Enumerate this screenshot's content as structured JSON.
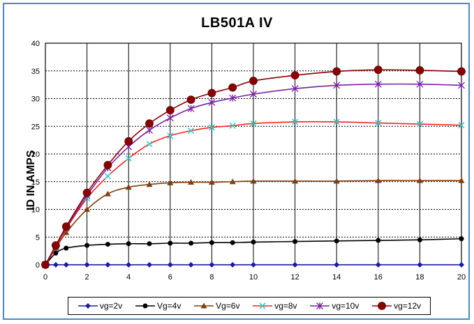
{
  "chart_data": {
    "type": "line",
    "title": "LB501A  IV",
    "xlabel": "",
    "ylabel": "ID IN AMPS",
    "xlim": [
      0,
      20
    ],
    "ylim": [
      0,
      40
    ],
    "xticks": [
      0,
      2,
      4,
      6,
      8,
      10,
      12,
      14,
      16,
      18,
      20
    ],
    "yticks": [
      0,
      5,
      10,
      15,
      20,
      25,
      30,
      35,
      40
    ],
    "grid": true,
    "legend_position": "bottom",
    "series": [
      {
        "name": "vg=2v",
        "color": "#1a1aa6",
        "marker": "diamond",
        "x": [
          0,
          0.5,
          1,
          2,
          3,
          4,
          5,
          6,
          7,
          8,
          9,
          10,
          12,
          14,
          16,
          18,
          20
        ],
        "y": [
          0,
          0,
          0,
          0,
          0,
          0,
          0,
          0,
          0,
          0,
          0,
          0,
          0,
          0,
          0,
          0,
          0
        ]
      },
      {
        "name": "Vg=4v",
        "color": "#000000",
        "marker": "circle",
        "x": [
          0,
          0.5,
          1,
          2,
          3,
          4,
          5,
          6,
          7,
          8,
          9,
          10,
          12,
          14,
          16,
          18,
          20
        ],
        "y": [
          0,
          2.1,
          3.0,
          3.5,
          3.7,
          3.8,
          3.8,
          3.9,
          3.9,
          4.0,
          4.0,
          4.1,
          4.2,
          4.3,
          4.4,
          4.5,
          4.7
        ]
      },
      {
        "name": "Vg=6v",
        "color": "#7f3f10",
        "marker": "triangle",
        "x": [
          0,
          0.5,
          1,
          2,
          3,
          4,
          5,
          6,
          7,
          8,
          9,
          10,
          12,
          14,
          16,
          18,
          20
        ],
        "y": [
          0,
          3.0,
          5.8,
          10.0,
          12.8,
          14.0,
          14.5,
          14.8,
          14.9,
          14.9,
          15.0,
          15.1,
          15.1,
          15.1,
          15.2,
          15.2,
          15.2
        ]
      },
      {
        "name": "vg=8v",
        "color": "#ff2020",
        "marker": "x",
        "marker_color": "#33cccc",
        "x": [
          0,
          0.5,
          1,
          2,
          3,
          4,
          5,
          6,
          7,
          8,
          9,
          10,
          12,
          14,
          16,
          18,
          20
        ],
        "y": [
          0,
          3.2,
          6.5,
          12.0,
          16.0,
          19.2,
          21.8,
          23.3,
          24.2,
          24.8,
          25.1,
          25.5,
          25.8,
          25.8,
          25.6,
          25.4,
          25.2
        ]
      },
      {
        "name": "vg=10v",
        "color": "#7a1fa2",
        "marker": "star",
        "x": [
          0,
          0.5,
          1,
          2,
          3,
          4,
          5,
          6,
          7,
          8,
          9,
          10,
          12,
          14,
          16,
          18,
          20
        ],
        "y": [
          0,
          3.4,
          6.7,
          12.5,
          17.5,
          21.3,
          24.3,
          26.5,
          28.2,
          29.3,
          30.1,
          30.8,
          31.8,
          32.4,
          32.6,
          32.6,
          32.4
        ]
      },
      {
        "name": "vg=12v",
        "color": "#8b0000",
        "marker": "big-circle",
        "x": [
          0,
          0.5,
          1,
          2,
          3,
          4,
          5,
          6,
          7,
          8,
          9,
          10,
          12,
          14,
          16,
          18,
          20
        ],
        "y": [
          0,
          3.5,
          6.9,
          13.0,
          18.0,
          22.3,
          25.5,
          27.9,
          29.8,
          31.0,
          32.0,
          33.2,
          34.2,
          34.9,
          35.2,
          35.1,
          34.9
        ]
      }
    ]
  }
}
